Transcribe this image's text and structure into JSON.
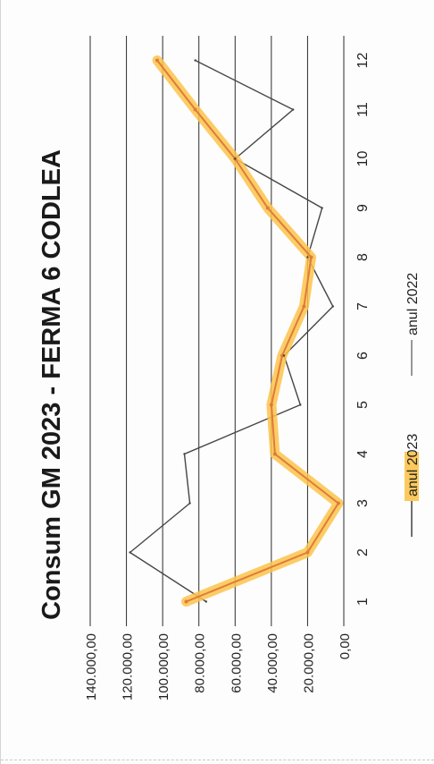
{
  "chart_data": {
    "type": "line",
    "title": "Consum GM  2023 - FERMA 6 CODLEA",
    "xlabel": "",
    "ylabel": "",
    "x": [
      1,
      2,
      3,
      4,
      5,
      6,
      7,
      8,
      9,
      10,
      11,
      12
    ],
    "x_tick_labels": [
      "1",
      "2",
      "3",
      "4",
      "5",
      "6",
      "7",
      "8",
      "9",
      "10",
      "11",
      "12"
    ],
    "y_tick_labels": [
      "0,00",
      "20.000,00",
      "40.000,00",
      "60.000,00",
      "80.000,00",
      "100.000,00",
      "120.000,00",
      "140.000,00"
    ],
    "y_ticks": [
      0,
      20000,
      40000,
      60000,
      80000,
      100000,
      120000,
      140000
    ],
    "ylim": [
      0,
      140000
    ],
    "grid": true,
    "legend_position": "bottom",
    "orientation": "rotated-90-ccw",
    "series": [
      {
        "name": "anul 2023",
        "color": "#e07b39",
        "highlight_color": "#fbc34a",
        "values": [
          87000,
          20000,
          3000,
          38000,
          40000,
          34000,
          22000,
          18000,
          42000,
          60000,
          82000,
          103000
        ]
      },
      {
        "name": "anul 2022",
        "color": "#6b6b6b",
        "values": [
          76000,
          118000,
          85000,
          88000,
          24000,
          33000,
          6000,
          20000,
          12000,
          60000,
          28000,
          82000
        ]
      }
    ]
  }
}
